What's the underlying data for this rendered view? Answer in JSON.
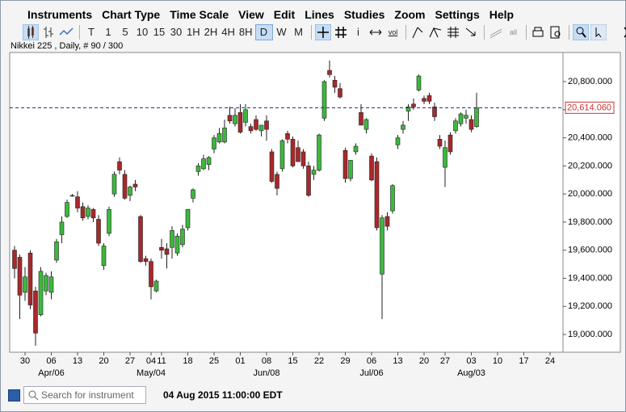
{
  "menu": [
    "Instruments",
    "Chart Type",
    "Time Scale",
    "View",
    "Edit",
    "Lines",
    "Studies",
    "Zoom",
    "Settings",
    "Help"
  ],
  "toolbar": {
    "timeframes": [
      "T",
      "1",
      "5",
      "10",
      "15",
      "30",
      "1H",
      "2H",
      "4H",
      "8H",
      "D",
      "W",
      "M"
    ],
    "info": "i",
    "icon_texts": [
      "vol",
      "all"
    ]
  },
  "chart_data": {
    "type": "candlestick",
    "subtitle": "Nikkei 225 , Daily, # 90 / 300",
    "categories": [
      null,
      null,
      "30",
      null,
      null,
      null,
      null,
      "06",
      null,
      null,
      null,
      null,
      "13",
      null,
      null,
      null,
      null,
      "20",
      null,
      null,
      null,
      null,
      "27",
      null,
      null,
      null,
      "04",
      null,
      "11",
      null,
      null,
      null,
      null,
      "18",
      null,
      null,
      null,
      null,
      "25",
      null,
      null,
      null,
      null,
      "01",
      null,
      null,
      null,
      null,
      "08",
      null,
      null,
      null,
      null,
      "15",
      null,
      null,
      null,
      null,
      "22",
      null,
      null,
      null,
      null,
      "29",
      null,
      null,
      null,
      null,
      "06",
      null,
      null,
      null,
      null,
      "13",
      null,
      null,
      null,
      null,
      "20",
      null,
      null,
      null,
      "27",
      null,
      null,
      null,
      null,
      "03",
      null,
      null,
      null,
      null,
      "10",
      null,
      null,
      null,
      null,
      "17",
      null,
      null,
      null,
      null,
      "24",
      null,
      null
    ],
    "month_labels": [
      null,
      null,
      null,
      null,
      null,
      null,
      null,
      "Apr/06",
      null,
      null,
      null,
      null,
      null,
      null,
      null,
      null,
      null,
      null,
      null,
      null,
      null,
      null,
      null,
      null,
      null,
      null,
      "May/04",
      null,
      null,
      null,
      null,
      null,
      null,
      null,
      null,
      null,
      null,
      null,
      null,
      null,
      null,
      null,
      null,
      null,
      null,
      null,
      null,
      null,
      "Jun/08",
      null,
      null,
      null,
      null,
      null,
      null,
      null,
      null,
      null,
      null,
      null,
      null,
      null,
      null,
      null,
      null,
      null,
      null,
      null,
      "Jul/06",
      null,
      null,
      null,
      null,
      null,
      null,
      null,
      null,
      null,
      null,
      null,
      null,
      null,
      null,
      null,
      null,
      null,
      null,
      "Aug/03",
      null,
      null,
      null,
      null,
      null,
      null,
      null,
      null,
      null,
      null,
      null,
      null,
      null,
      null,
      null,
      null,
      null
    ],
    "open": [
      19600,
      19550,
      19300,
      19580,
      19310,
      19140,
      19310,
      19300,
      19530,
      19710,
      19840,
      19990,
      19980,
      19910,
      19840,
      19890,
      19820,
      19490,
      19720,
      20000,
      20230,
      20140,
      19990,
      20070,
      19840,
      19540,
      19520,
      19310,
      19620,
      19610,
      19620,
      19580,
      19640,
      19760,
      19970,
      20160,
      20180,
      20210,
      20320,
      20370,
      20370,
      20560,
      20500,
      20580,
      20510,
      20480,
      20530,
      20450,
      20520,
      20300,
      20140,
      20180,
      20430,
      20390,
      20330,
      20300,
      20200,
      20140,
      20170,
      20540,
      20880,
      20810,
      20750,
      20310,
      20110,
      20300,
      20580,
      20460,
      20270,
      20230,
      19430,
      19840,
      19880,
      20350,
      20460,
      20590,
      20640,
      20740,
      20680,
      20700,
      20620,
      20390,
      20190,
      20420,
      20450,
      20500,
      20540,
      20530,
      20480,
      null,
      null,
      null,
      null,
      null,
      null,
      null,
      null,
      null,
      null,
      null,
      null,
      null,
      null,
      null,
      null
    ],
    "high": [
      19630,
      19570,
      19480,
      19600,
      19340,
      19480,
      19440,
      19450,
      19680,
      19840,
      19960,
      20000,
      20020,
      19940,
      19920,
      19900,
      19850,
      19650,
      19910,
      20160,
      20260,
      20170,
      20060,
      20100,
      19850,
      19560,
      19540,
      19390,
      19680,
      19650,
      19770,
      19720,
      19780,
      19890,
      20040,
      20220,
      20280,
      20270,
      20420,
      20470,
      20530,
      20620,
      20610,
      20640,
      20640,
      20500,
      20560,
      20490,
      20560,
      20320,
      20160,
      20390,
      20450,
      20410,
      20380,
      20320,
      20230,
      20200,
      20430,
      20810,
      20950,
      20840,
      20790,
      20330,
      20240,
      20360,
      20640,
      20540,
      20290,
      20260,
      19850,
      19870,
      20070,
      20420,
      20520,
      20640,
      20680,
      20850,
      20700,
      20720,
      20650,
      20420,
      20380,
      20440,
      20540,
      20580,
      20600,
      20560,
      20720,
      null,
      null,
      null,
      null,
      null,
      null,
      null,
      null,
      null,
      null,
      null,
      null,
      null,
      null,
      null,
      null
    ],
    "low": [
      19400,
      19110,
      19240,
      19180,
      18920,
      19130,
      19280,
      19250,
      19510,
      19650,
      19830,
      19980,
      19870,
      19810,
      19820,
      19800,
      19630,
      19460,
      19700,
      19980,
      20140,
      19960,
      19950,
      20020,
      19510,
      19490,
      19250,
      19300,
      19540,
      19470,
      19540,
      19560,
      19620,
      19740,
      19940,
      20130,
      20170,
      20170,
      20290,
      20360,
      20360,
      20500,
      20480,
      20430,
      20480,
      20430,
      20450,
      20410,
      20380,
      20080,
      19990,
      20160,
      20360,
      20190,
      20230,
      20180,
      19980,
      20100,
      20160,
      20520,
      20830,
      20720,
      20680,
      20080,
      20090,
      20280,
      20490,
      20430,
      20090,
      19740,
      19110,
      19740,
      19860,
      20320,
      20430,
      20520,
      20600,
      20730,
      20640,
      20640,
      20520,
      20320,
      20050,
      20280,
      20430,
      20480,
      20500,
      20440,
      20470,
      null,
      null,
      null,
      null,
      null,
      null,
      null,
      null,
      null,
      null,
      null,
      null,
      null,
      null,
      null,
      null
    ],
    "close": [
      19470,
      19280,
      19410,
      19210,
      19010,
      19450,
      19420,
      19410,
      19660,
      19800,
      19940,
      19990,
      19900,
      19830,
      19900,
      19830,
      19650,
      19630,
      19890,
      20140,
      20170,
      19970,
      20050,
      20050,
      19520,
      19520,
      19340,
      19380,
      19600,
      19570,
      19740,
      19700,
      19750,
      19890,
      20030,
      20200,
      20250,
      20260,
      20400,
      20430,
      20470,
      20520,
      20560,
      20440,
      20600,
      20450,
      20460,
      20490,
      20460,
      20090,
      20040,
      20380,
      20390,
      20200,
      20230,
      20200,
      19990,
      20170,
      20420,
      20800,
      20850,
      20760,
      20690,
      20110,
      20240,
      20340,
      20490,
      20530,
      20100,
      19760,
      19830,
      19770,
      20060,
      20400,
      20490,
      20620,
      20620,
      20840,
      20660,
      20660,
      20550,
      20340,
      20330,
      20300,
      20520,
      20570,
      20560,
      20460,
      20614.06,
      null,
      null,
      null,
      null,
      null,
      null,
      null,
      null,
      null,
      null,
      null,
      null,
      null,
      null,
      null,
      null
    ],
    "up_color": "#3cb83c",
    "down_color": "#a8282c",
    "ylim": [
      18874,
      21007
    ],
    "yticks": [
      {
        "value": 19000,
        "label": "19,000.000"
      },
      {
        "value": 19200,
        "label": "19,200.000"
      },
      {
        "value": 19400,
        "label": "19,400.000"
      },
      {
        "value": 19600,
        "label": "19,600.000"
      },
      {
        "value": 19800,
        "label": "19,800.000"
      },
      {
        "value": 20000,
        "label": "20,000.000"
      },
      {
        "value": 20200,
        "label": "20,200.000"
      },
      {
        "value": 20400,
        "label": "20,400.000"
      },
      {
        "value": 20600,
        "label": "20,600.000"
      },
      {
        "value": 20800,
        "label": "20,800.000"
      }
    ],
    "last_price": {
      "value": 20614.06,
      "label": "20,614.060"
    }
  },
  "status": {
    "search_placeholder": "Search for instrument",
    "timestamp": "04 Aug 2015 11:00:00 EDT"
  }
}
